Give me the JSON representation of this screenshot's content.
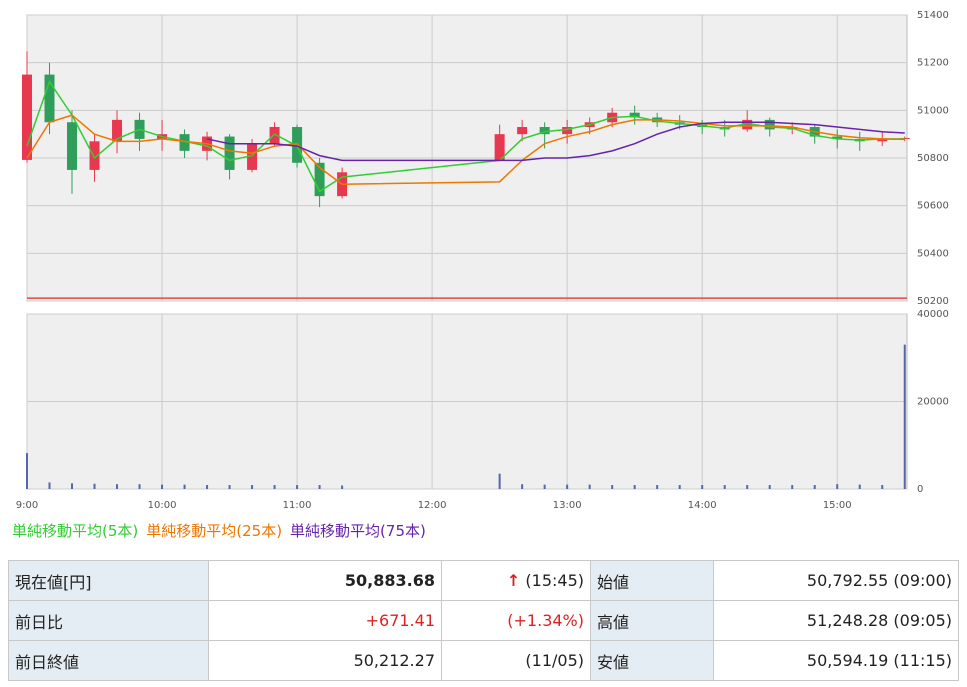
{
  "chart_data": [
    {
      "type": "candlestick",
      "x": [
        "9:00",
        "9:10",
        "9:20",
        "9:30",
        "9:40",
        "9:50",
        "10:00",
        "10:10",
        "10:20",
        "10:30",
        "10:40",
        "10:50",
        "11:00",
        "11:10",
        "11:20",
        "12:30",
        "12:40",
        "12:50",
        "13:00",
        "13:10",
        "13:20",
        "13:30",
        "13:40",
        "13:50",
        "14:00",
        "14:10",
        "14:20",
        "14:30",
        "14:40",
        "14:50",
        "15:00",
        "15:10",
        "15:20",
        "15:30"
      ],
      "open": [
        50792,
        51150,
        50950,
        50750,
        50870,
        50960,
        50880,
        50900,
        50830,
        50890,
        50750,
        50860,
        50930,
        50780,
        50640,
        50790,
        50900,
        50930,
        50900,
        50930,
        50950,
        50990,
        50970,
        50950,
        50940,
        50930,
        50920,
        50960,
        50920,
        50930,
        50890,
        50880,
        50870,
        50880
      ],
      "high": [
        51248,
        51200,
        51000,
        50900,
        51000,
        50990,
        50960,
        50920,
        50910,
        50900,
        50880,
        50950,
        50940,
        50800,
        50760,
        50940,
        50960,
        50950,
        50960,
        50970,
        51010,
        51020,
        50990,
        50980,
        50960,
        50960,
        51000,
        50970,
        50950,
        50940,
        50920,
        50910,
        50910,
        50890
      ],
      "low": [
        50780,
        50900,
        50650,
        50700,
        50820,
        50830,
        50830,
        50800,
        50790,
        50710,
        50740,
        50850,
        50760,
        50594,
        50630,
        50790,
        50870,
        50840,
        50860,
        50900,
        50930,
        50940,
        50930,
        50920,
        50900,
        50890,
        50910,
        50890,
        50900,
        50860,
        50840,
        50830,
        50850,
        50870
      ],
      "close": [
        51150,
        50950,
        50750,
        50870,
        50960,
        50880,
        50900,
        50830,
        50890,
        50750,
        50860,
        50930,
        50780,
        50640,
        50740,
        50900,
        50930,
        50900,
        50930,
        50950,
        50990,
        50970,
        50950,
        50940,
        50930,
        50920,
        50960,
        50920,
        50930,
        50890,
        50880,
        50870,
        50880,
        50884
      ],
      "up_color": "#e8384f",
      "down_color": "#2f9e5a",
      "series": [
        {
          "name": "単純移動平均(5本)",
          "color": "#33cc33",
          "values": [
            50850,
            51120,
            50980,
            50800,
            50880,
            50920,
            50890,
            50870,
            50850,
            50790,
            50810,
            50900,
            50850,
            50660,
            50720,
            50790,
            50880,
            50910,
            50920,
            50940,
            50970,
            50975,
            50955,
            50945,
            50935,
            50925,
            50945,
            50930,
            50925,
            50895,
            50880,
            50875,
            50880,
            50880
          ]
        },
        {
          "name": "単純移動平均(25本)",
          "color": "#ee7700",
          "values": [
            50800,
            50950,
            50980,
            50900,
            50870,
            50870,
            50880,
            50870,
            50860,
            50830,
            50820,
            50850,
            50860,
            50760,
            50690,
            50700,
            50790,
            50860,
            50890,
            50910,
            50940,
            50960,
            50960,
            50955,
            50945,
            50935,
            50935,
            50935,
            50930,
            50910,
            50895,
            50885,
            50880,
            50878
          ]
        },
        {
          "name": "単純移動平均(75本)",
          "color": "#6622aa",
          "values": [
            null,
            null,
            null,
            null,
            null,
            null,
            null,
            null,
            50880,
            50860,
            50860,
            50860,
            50850,
            50810,
            50790,
            50790,
            50790,
            50800,
            50800,
            50810,
            50830,
            50860,
            50900,
            50930,
            50945,
            50950,
            50950,
            50950,
            50945,
            50940,
            50930,
            50920,
            50910,
            50905
          ]
        }
      ],
      "hline": 50212.27,
      "hline_color": "#ee4444",
      "xlim": [
        "9:00",
        "15:31"
      ],
      "ylim": [
        50200,
        51400
      ],
      "yticks": [
        50200,
        50400,
        50600,
        50800,
        51000,
        51200,
        51400
      ],
      "grid": true
    },
    {
      "type": "bar",
      "x": [
        "9:00",
        "9:10",
        "9:20",
        "9:30",
        "9:40",
        "9:50",
        "10:00",
        "10:10",
        "10:20",
        "10:30",
        "10:40",
        "10:50",
        "11:00",
        "11:10",
        "11:20",
        "12:30",
        "12:40",
        "12:50",
        "13:00",
        "13:10",
        "13:20",
        "13:30",
        "13:40",
        "13:50",
        "14:00",
        "14:10",
        "14:20",
        "14:30",
        "14:40",
        "14:50",
        "15:00",
        "15:10",
        "15:20",
        "15:30"
      ],
      "values": [
        8200,
        1500,
        1300,
        1200,
        1100,
        1100,
        1000,
        1000,
        900,
        900,
        900,
        900,
        900,
        900,
        800,
        3500,
        1100,
        1000,
        1000,
        1000,
        900,
        900,
        900,
        900,
        900,
        900,
        900,
        900,
        900,
        900,
        1100,
        1000,
        900,
        33000
      ],
      "color": "#5566aa",
      "xlim": [
        "9:00",
        "15:31"
      ],
      "xticks": [
        "9:00",
        "10:00",
        "11:00",
        "12:00",
        "13:00",
        "14:00",
        "15:00"
      ],
      "ylim": [
        0,
        40000
      ],
      "yticks": [
        0,
        20000,
        40000
      ],
      "grid": true
    }
  ],
  "table": {
    "rows": [
      [
        "現在値[円]",
        "50,883.68",
        "↑",
        "(15:45)",
        "始値",
        "50,792.55 (09:00)"
      ],
      [
        "前日比",
        "+671.41",
        "(+1.34%)",
        "高値",
        "51,248.28 (09:05)"
      ],
      [
        "前日終値",
        "50,212.27",
        "(11/05)",
        "安値",
        "50,594.19 (11:15)"
      ]
    ]
  }
}
